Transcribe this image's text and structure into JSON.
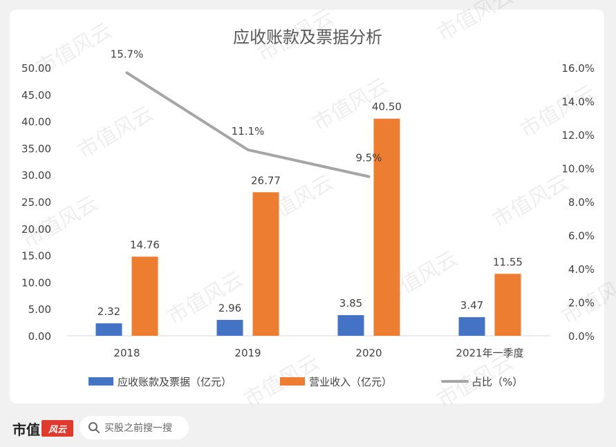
{
  "chart_data": {
    "type": "bar",
    "title": "应收账款及票据分析",
    "categories": [
      "2018",
      "2019",
      "2020",
      "2021年一季度"
    ],
    "series": [
      {
        "name": "应收账款及票据（亿元）",
        "type": "bar",
        "axis": "left",
        "color": "#4472c4",
        "values": [
          2.32,
          2.96,
          3.85,
          3.47
        ],
        "labels": [
          "2.32",
          "2.96",
          "3.85",
          "3.47"
        ]
      },
      {
        "name": "营业收入（亿元）",
        "type": "bar",
        "axis": "left",
        "color": "#ed7d31",
        "values": [
          14.76,
          26.77,
          40.5,
          11.55
        ],
        "labels": [
          "14.76",
          "26.77",
          "40.50",
          "11.55"
        ]
      },
      {
        "name": "占比（%）",
        "type": "line",
        "axis": "right",
        "color": "#a5a5a5",
        "values": [
          15.7,
          11.1,
          9.5,
          null
        ],
        "labels": [
          "15.7%",
          "11.1%",
          "9.5%",
          null
        ]
      }
    ],
    "y_left": {
      "min": 0,
      "max": 50,
      "step": 5,
      "ticks": [
        "0.00",
        "5.00",
        "10.00",
        "15.00",
        "20.00",
        "25.00",
        "30.00",
        "35.00",
        "40.00",
        "45.00",
        "50.00"
      ]
    },
    "y_right": {
      "min": 0,
      "max": 16,
      "step": 2,
      "ticks": [
        "0.0%",
        "2.0%",
        "4.0%",
        "6.0%",
        "8.0%",
        "10.0%",
        "12.0%",
        "14.0%",
        "16.0%"
      ]
    },
    "legend_position": "bottom",
    "grid": false
  },
  "watermark": "市值风云",
  "footer": {
    "brand": "市值",
    "search_text": "买股之前搜一搜"
  }
}
